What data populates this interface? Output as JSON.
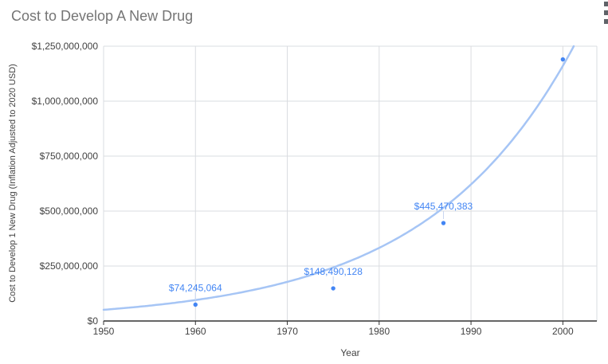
{
  "chart_data": {
    "type": "scatter",
    "title": "Cost to Develop A New Drug",
    "xlabel": "Year",
    "ylabel": "Cost to Develop 1 New Drug (Inflation Adjusted to 2020 USD)",
    "xlim": [
      1950,
      2003.7
    ],
    "ylim": [
      0,
      1250000000
    ],
    "grid": true,
    "legend": "none",
    "x_ticks": [
      {
        "value": 1950,
        "label": "1950"
      },
      {
        "value": 1960,
        "label": "1960"
      },
      {
        "value": 1970,
        "label": "1970"
      },
      {
        "value": 1980,
        "label": "1980"
      },
      {
        "value": 1990,
        "label": "1990"
      },
      {
        "value": 2000,
        "label": "2000"
      }
    ],
    "y_ticks": [
      {
        "value": 0,
        "label": "$0"
      },
      {
        "value": 250000000,
        "label": "$250,000,000"
      },
      {
        "value": 500000000,
        "label": "$500,000,000"
      },
      {
        "value": 750000000,
        "label": "$750,000,000"
      },
      {
        "value": 1000000000,
        "label": "$1,000,000,000"
      },
      {
        "value": 1250000000,
        "label": "$1,250,000,000"
      }
    ],
    "points": [
      {
        "x": 1960,
        "y": 74245064,
        "label": "$74,245,064"
      },
      {
        "x": 1975,
        "y": 148490128,
        "label": "$148,490,128"
      },
      {
        "x": 1987,
        "y": 445470383,
        "label": "$445,470,383"
      },
      {
        "x": 2000,
        "y": 1190000000,
        "label": null
      }
    ],
    "trendline": {
      "type": "exponential",
      "base_year": 1950,
      "value_at_base_year": 51000000,
      "annual_growth_rate": 0.0625
    },
    "style": {
      "point_color": "#4285f4",
      "label_color": "#4285f4",
      "trendline_color": "#a6c5f5",
      "stem_color": "#c9d6f0",
      "grid_color": "#dadce0",
      "tick_text_color": "#424242",
      "axis_line_color": "#333333",
      "title_color": "#757575",
      "background": "#ffffff"
    }
  },
  "icons": {
    "top_right": "vertical-ellipsis-icon"
  }
}
